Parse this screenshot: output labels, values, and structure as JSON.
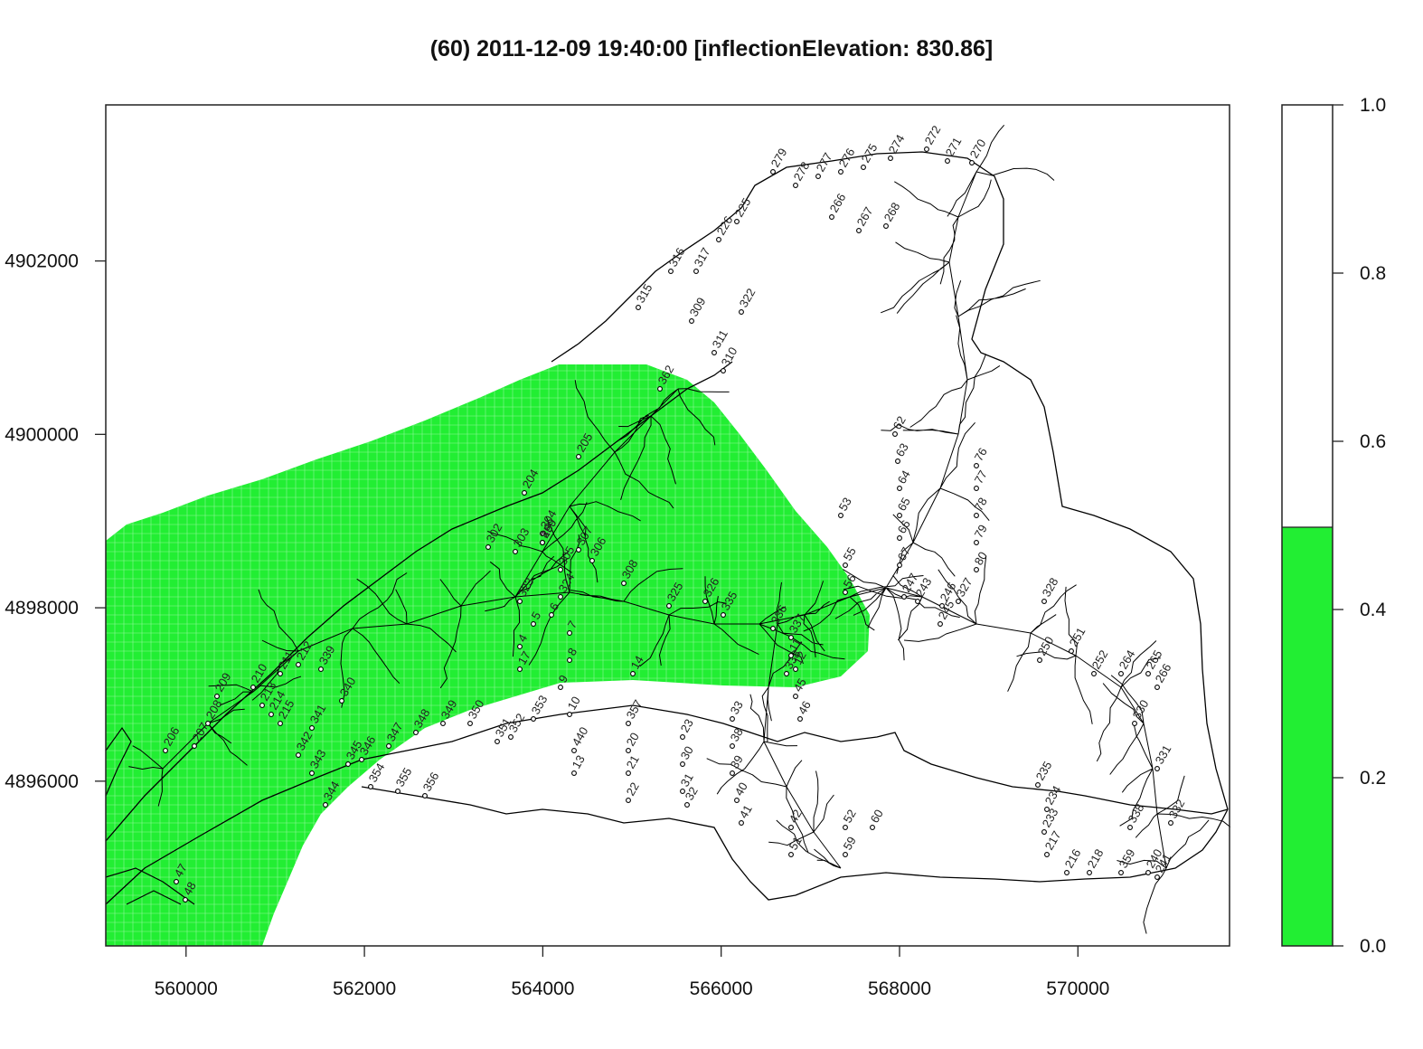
{
  "title": "(60) 2011-12-09 19:40:00 [inflectionElevation: 830.86]",
  "colors": {
    "inundated": "#22ee33",
    "dry": "#ffffff",
    "line": "#000000"
  },
  "map": {
    "x_ticks": [
      "560000",
      "562000",
      "564000",
      "566000",
      "568000",
      "570000"
    ],
    "y_ticks": [
      "4902000",
      "4900000",
      "4898000",
      "4896000"
    ],
    "xlim": [
      559100,
      571700
    ],
    "ylim": [
      4894100,
      4903800
    ]
  },
  "colorbar": {
    "ticks": [
      "1.0",
      "0.8",
      "0.6",
      "0.4",
      "0.2",
      "0.0"
    ],
    "fill_level": 0.5
  },
  "stations": [
    "279",
    "278",
    "277",
    "276",
    "275",
    "274",
    "272",
    "271",
    "270",
    "225",
    "226",
    "266",
    "267",
    "268",
    "316",
    "317",
    "315",
    "322",
    "309",
    "311",
    "310",
    "362",
    "62",
    "63",
    "64",
    "65",
    "66",
    "67",
    "76",
    "77",
    "78",
    "79",
    "80",
    "53",
    "55",
    "56",
    "247",
    "243",
    "246",
    "327",
    "245",
    "328",
    "250",
    "251",
    "252",
    "264",
    "265",
    "266",
    "330",
    "331",
    "332",
    "338",
    "359",
    "240",
    "241",
    "216",
    "218",
    "233",
    "234",
    "235",
    "217",
    "204",
    "205",
    "206",
    "207",
    "208",
    "209",
    "210",
    "211",
    "212",
    "213",
    "214",
    "215",
    "302",
    "303",
    "304",
    "305",
    "306",
    "307",
    "308",
    "323",
    "324",
    "325",
    "326",
    "335",
    "336",
    "337",
    "338",
    "339",
    "340",
    "341",
    "342",
    "343",
    "344",
    "345",
    "346",
    "347",
    "348",
    "349",
    "350",
    "351",
    "352",
    "353",
    "354",
    "355",
    "356",
    "357",
    "20",
    "21",
    "22",
    "23",
    "30",
    "31",
    "32",
    "33",
    "38",
    "39",
    "40",
    "41",
    "42",
    "51",
    "52",
    "59",
    "60",
    "440",
    "13",
    "14",
    "17",
    "4",
    "5",
    "6",
    "7",
    "8",
    "9",
    "10",
    "11",
    "12",
    "45",
    "46",
    "47",
    "48",
    "49",
    "259",
    "260"
  ]
}
